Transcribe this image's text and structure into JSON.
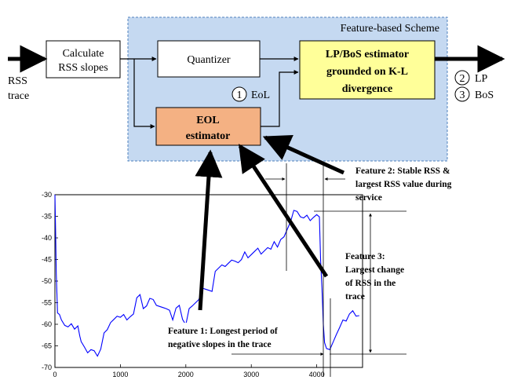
{
  "scheme": {
    "title": "Feature-based Scheme",
    "calculate_label": [
      "Calculate",
      "RSS slopes"
    ],
    "quantizer_label": "Quantizer",
    "lpbos_label": [
      "LP/BoS estimator",
      "grounded on K-L",
      "divergence"
    ],
    "eol_label": [
      "EOL",
      "estimator"
    ],
    "eol_marker_num": "1",
    "eol_marker_text": "EoL",
    "output_lp_num": "2",
    "output_lp_text": "LP",
    "output_bos_num": "3",
    "output_bos_text": "BoS",
    "input_label": [
      "RSS",
      "trace"
    ]
  },
  "annotations": {
    "feature1": [
      "Feature 1: Longest period of",
      "negative slopes in the trace"
    ],
    "feature2": [
      "Feature 2: Stable RSS &",
      "largest RSS value during",
      "service"
    ],
    "feature3": [
      "Feature 3:",
      "Largest change",
      "of RSS in the",
      "trace"
    ]
  },
  "colors": {
    "scheme_fill": "#c5d9f1",
    "scheme_border": "#4f81bd",
    "lpbos_fill": "#ffff99",
    "eol_fill": "#f4b183",
    "trace": "#0000ff"
  },
  "chart_data": {
    "type": "line",
    "xlim": [
      0,
      4700
    ],
    "ylim": [
      -70,
      -30
    ],
    "xticks": [
      "0",
      "1000",
      "2000",
      "3000",
      "4000"
    ],
    "yticks": [
      "-30",
      "-35",
      "-40",
      "-45",
      "-50",
      "-55",
      "-60",
      "-65",
      "-70"
    ],
    "series": [
      {
        "x": [
          0,
          10,
          20,
          40,
          70,
          100,
          150,
          200,
          250,
          300,
          350,
          380,
          400,
          450,
          500,
          550,
          600,
          650,
          700,
          750,
          800,
          850,
          900,
          950,
          1000,
          1050,
          1100,
          1150,
          1200,
          1250,
          1300,
          1350,
          1400,
          1450,
          1500,
          1550,
          1600,
          1650,
          1700,
          1750,
          1800,
          1850,
          1900,
          1950,
          2000,
          2050,
          2100,
          2150,
          2200,
          2250,
          2300,
          2350,
          2400,
          2450,
          2500,
          2550,
          2600,
          2650,
          2700,
          2750,
          2800,
          2850,
          2900,
          2950,
          3000,
          3050,
          3100,
          3150,
          3200,
          3250,
          3300,
          3350,
          3400,
          3450,
          3500,
          3550,
          3600,
          3650,
          3700,
          3750,
          3800,
          3850,
          3900,
          3950,
          4000,
          4020,
          4040,
          4060,
          4080,
          4100,
          4120,
          4150,
          4200,
          4250,
          4300,
          4350,
          4400,
          4450,
          4500,
          4550,
          4600,
          4650
        ],
        "y": [
          -30,
          -38,
          -48,
          -57,
          -58,
          -59,
          -60,
          -61,
          -60,
          -61,
          -60,
          -63,
          -64,
          -65,
          -67,
          -66,
          -66,
          -67,
          -66,
          -62,
          -61,
          -60,
          -59,
          -58,
          -58,
          -58,
          -59,
          -58,
          -58,
          -54,
          -53,
          -56,
          -56,
          -54,
          -54,
          -56,
          -56,
          -56,
          -56,
          -57,
          -59,
          -56,
          -56,
          -59,
          -60,
          -56,
          -56,
          -55,
          -54,
          -52,
          -52,
          -52,
          -52,
          -48,
          -47,
          -46,
          -47,
          -46,
          -45,
          -45,
          -46,
          -45,
          -43,
          -45,
          -44,
          -43,
          -42,
          -44,
          -43,
          -42,
          -43,
          -41,
          -42,
          -40,
          -40,
          -38,
          -36,
          -34,
          -34,
          -35,
          -35,
          -35,
          -36,
          -35,
          -35,
          -35,
          -35,
          -45,
          -52,
          -60,
          -64,
          -66,
          -66,
          -64,
          -62,
          -61,
          -59,
          -59,
          -58,
          -57,
          -58,
          -58
        ]
      }
    ]
  }
}
